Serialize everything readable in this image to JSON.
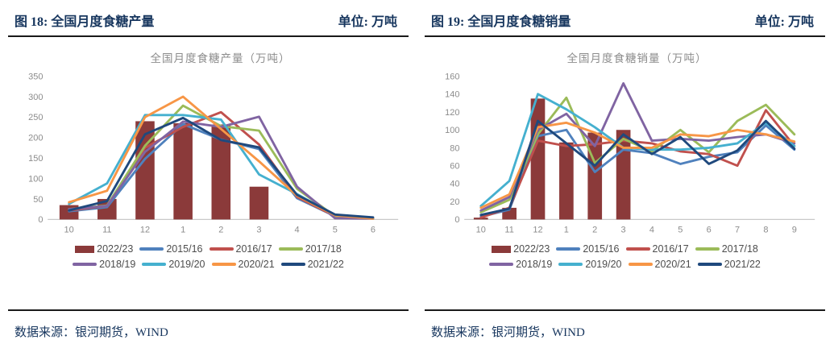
{
  "panels": {
    "left": {
      "heading": "图 18: 全国月度食糖产量",
      "unit": "单位: 万吨",
      "source": "数据来源：银河期货，WIND"
    },
    "right": {
      "heading": "图 19: 全国月度食糖销量",
      "unit": "单位: 万吨",
      "source": "数据来源：银河期货，WIND"
    }
  },
  "colors": {
    "heading_text": "#17365E",
    "chart_title_text": "#8C8C8C",
    "axis_text": "#8C8C8C",
    "divider": "#1A1A1A",
    "bar_fill": "#8B3A3A"
  },
  "chart_data": [
    {
      "type": "combo-bar-line",
      "title": "全国月度食糖产量（万吨）",
      "xlabel": "",
      "ylabel": "",
      "categories": [
        "10",
        "11",
        "12",
        "1",
        "2",
        "3",
        "4",
        "5",
        "6"
      ],
      "ylim": [
        0,
        350
      ],
      "ytick_step": 50,
      "grid": false,
      "legend_position": "bottom",
      "series": [
        {
          "name": "2022/23",
          "kind": "bar",
          "color": "#8B3A3A",
          "values": [
            35,
            50,
            240,
            235,
            232,
            80,
            null,
            null,
            null
          ]
        },
        {
          "name": "2015/16",
          "kind": "line",
          "color": "#4F81BD",
          "values": [
            20,
            30,
            148,
            233,
            195,
            172,
            52,
            8,
            3
          ]
        },
        {
          "name": "2016/17",
          "kind": "line",
          "color": "#C0504D",
          "values": [
            22,
            33,
            175,
            226,
            262,
            183,
            55,
            8,
            3
          ]
        },
        {
          "name": "2017/18",
          "kind": "line",
          "color": "#9BBB59",
          "values": [
            25,
            34,
            180,
            278,
            228,
            217,
            75,
            8,
            2
          ]
        },
        {
          "name": "2018/19",
          "kind": "line",
          "color": "#8064A2",
          "values": [
            25,
            33,
            165,
            239,
            226,
            251,
            80,
            3,
            2
          ]
        },
        {
          "name": "2019/20",
          "kind": "line",
          "color": "#45B0CF",
          "values": [
            38,
            88,
            255,
            255,
            244,
            110,
            62,
            10,
            3
          ]
        },
        {
          "name": "2020/21",
          "kind": "line",
          "color": "#F79646",
          "values": [
            42,
            70,
            250,
            300,
            221,
            142,
            58,
            10,
            2
          ]
        },
        {
          "name": "2021/22",
          "kind": "line",
          "color": "#1F497D",
          "values": [
            22,
            45,
            208,
            248,
            194,
            176,
            60,
            12,
            5
          ]
        }
      ],
      "legend_rows": [
        [
          "2022/23",
          "2015/16",
          "2016/17",
          "2017/18"
        ],
        [
          "2018/19",
          "2019/20",
          "2020/21",
          "2021/22"
        ]
      ]
    },
    {
      "type": "combo-bar-line",
      "title": "全国月度食糖销量（万吨）",
      "xlabel": "",
      "ylabel": "",
      "categories": [
        "10",
        "11",
        "12",
        "1",
        "2",
        "3",
        "4",
        "5",
        "6",
        "7",
        "8",
        "9"
      ],
      "ylim": [
        0,
        160
      ],
      "ytick_step": 20,
      "grid": false,
      "legend_position": "bottom",
      "series": [
        {
          "name": "2022/23",
          "kind": "bar",
          "color": "#8B3A3A",
          "values": [
            2,
            13,
            135,
            86,
            97,
            100,
            null,
            null,
            null,
            null,
            null,
            null
          ]
        },
        {
          "name": "2015/16",
          "kind": "line",
          "color": "#4F81BD",
          "values": [
            3,
            11,
            93,
            100,
            53,
            78,
            74,
            62,
            70,
            75,
            105,
            78
          ]
        },
        {
          "name": "2016/17",
          "kind": "line",
          "color": "#C0504D",
          "values": [
            2,
            13,
            88,
            82,
            84,
            88,
            85,
            76,
            73,
            60,
            122,
            82
          ]
        },
        {
          "name": "2017/18",
          "kind": "line",
          "color": "#9BBB59",
          "values": [
            8,
            22,
            95,
            136,
            63,
            90,
            76,
            100,
            75,
            110,
            128,
            95
          ]
        },
        {
          "name": "2018/19",
          "kind": "line",
          "color": "#8064A2",
          "values": [
            10,
            25,
            100,
            118,
            82,
            152,
            88,
            90,
            88,
            92,
            95,
            85
          ]
        },
        {
          "name": "2019/20",
          "kind": "line",
          "color": "#45B0CF",
          "values": [
            15,
            43,
            140,
            123,
            103,
            80,
            78,
            78,
            80,
            85,
            108,
            82
          ]
        },
        {
          "name": "2020/21",
          "kind": "line",
          "color": "#F79646",
          "values": [
            13,
            28,
            103,
            108,
            97,
            80,
            80,
            95,
            93,
            100,
            95,
            87
          ]
        },
        {
          "name": "2021/22",
          "kind": "line",
          "color": "#1F497D",
          "values": [
            5,
            12,
            110,
            85,
            60,
            95,
            73,
            92,
            62,
            77,
            110,
            79
          ]
        }
      ],
      "legend_rows": [
        [
          "2022/23",
          "2015/16",
          "2016/17",
          "2017/18"
        ],
        [
          "2018/19",
          "2019/20",
          "2020/21",
          "2021/22"
        ]
      ]
    }
  ]
}
